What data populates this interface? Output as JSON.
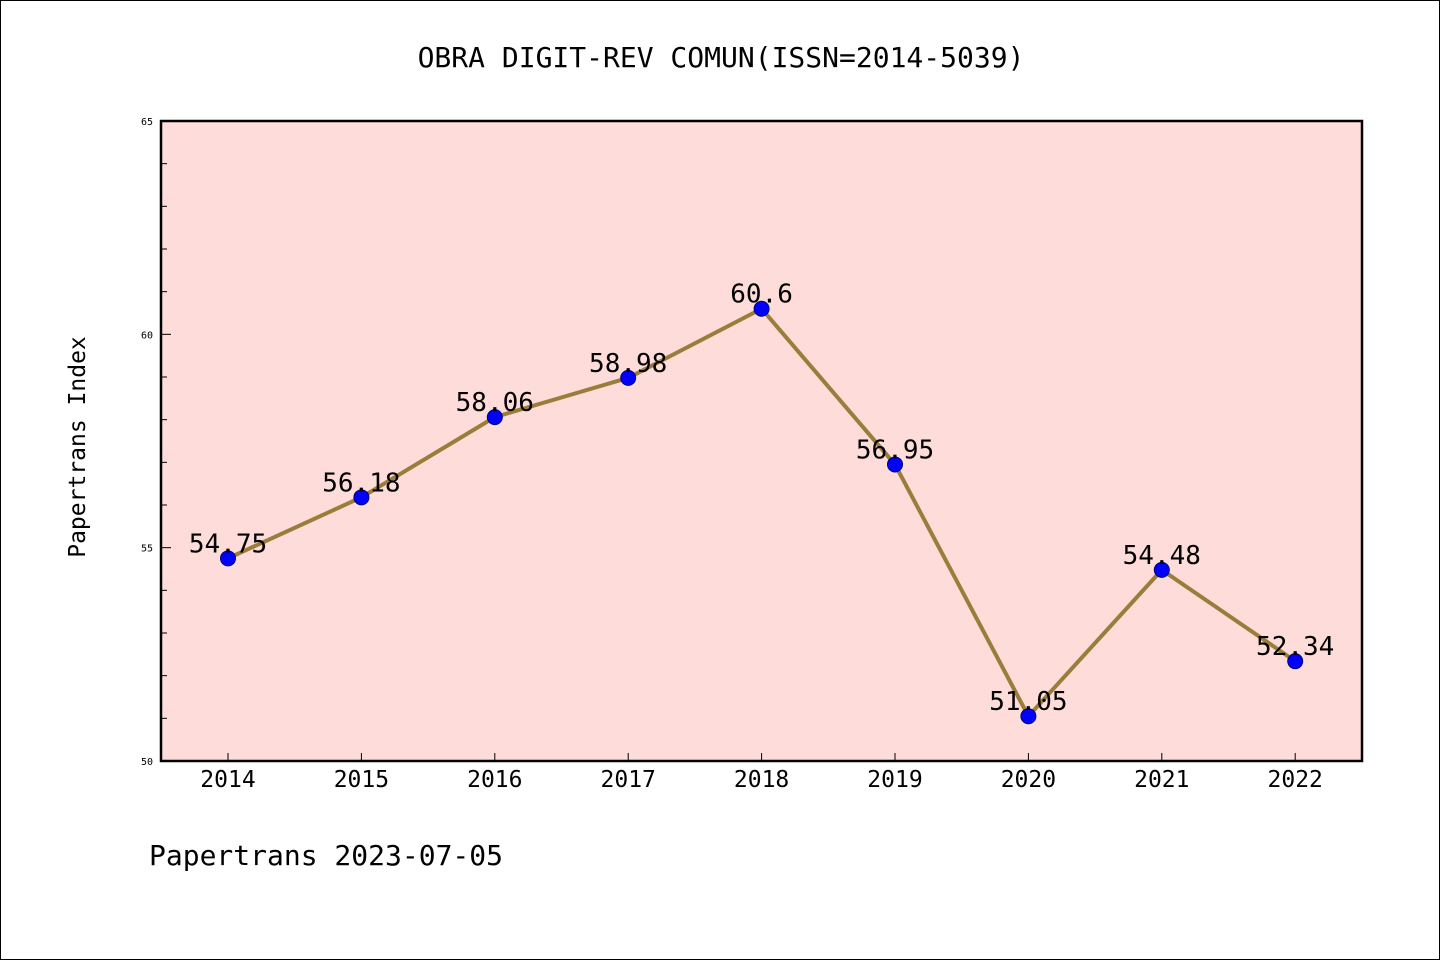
{
  "chart_data": {
    "type": "line",
    "title": "OBRA DIGIT-REV COMUN(ISSN=2014-5039)",
    "xlabel": "",
    "ylabel": "Papertrans Index",
    "categories": [
      "2014",
      "2015",
      "2016",
      "2017",
      "2018",
      "2019",
      "2020",
      "2021",
      "2022"
    ],
    "values": [
      54.75,
      56.18,
      58.06,
      58.98,
      60.6,
      56.95,
      51.05,
      54.48,
      52.34
    ],
    "data_labels": [
      "54.75",
      "56.18",
      "58.06",
      "58.98",
      "60.6",
      "56.95",
      "51.05",
      "54.48",
      "52.34"
    ],
    "ylim": [
      50,
      65
    ],
    "yticks": [
      50,
      55,
      60,
      65
    ],
    "ytick_labels": [
      "50",
      "55",
      "60",
      "65"
    ],
    "grid": false,
    "legend": "none",
    "colors": {
      "plot_background": "#fddcd9",
      "line": "#9a7d3a",
      "marker": "#0000ff",
      "marker_edge": "#00007a"
    }
  },
  "footer": {
    "text": "Papertrans 2023-07-05"
  }
}
